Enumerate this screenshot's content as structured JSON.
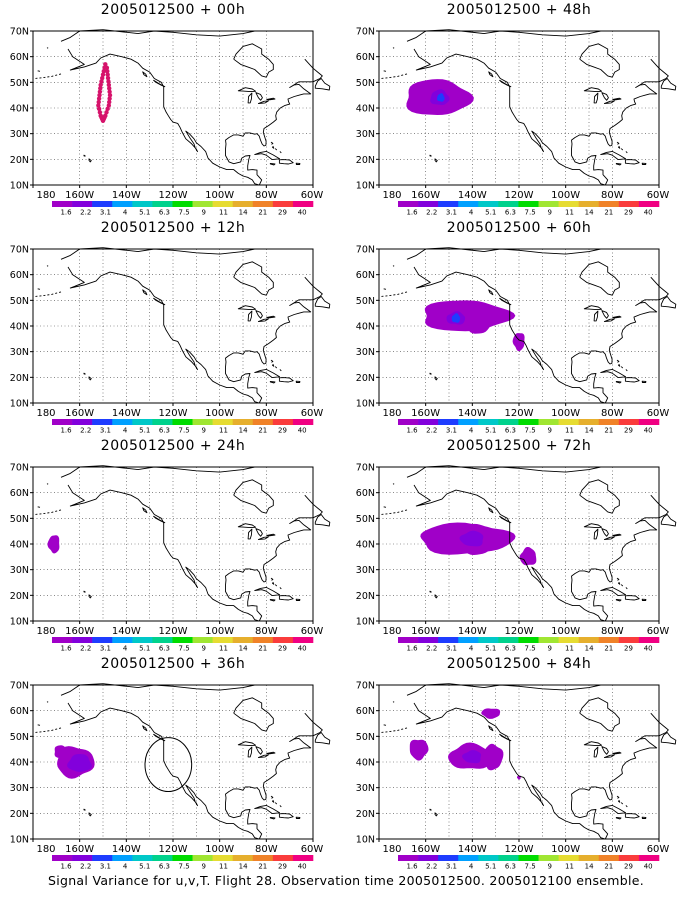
{
  "page": {
    "caption": "Signal Variance for u,v,T. Flight 28. Observation time 2005012500. 2005012100 ensemble."
  },
  "map": {
    "lat_labels": [
      "70N",
      "60N",
      "50N",
      "40N",
      "30N",
      "20N",
      "10N"
    ],
    "lon_labels": [
      "180",
      "160W",
      "140W",
      "120W",
      "100W",
      "80W",
      "60W"
    ],
    "lat_range": [
      10,
      70
    ],
    "lon_range": [
      -180,
      -60
    ],
    "grid": "dotted",
    "land_color": "#ffffff",
    "coast_color": "#000000"
  },
  "colorbar": {
    "labels": [
      "1.6",
      "2.2",
      "3.1",
      "4",
      "5.1",
      "6.3",
      "7.5",
      "9",
      "11",
      "14",
      "21",
      "29",
      "40"
    ],
    "colors": [
      "#a000c8",
      "#8200dc",
      "#1e3cff",
      "#00a0ff",
      "#00c8c8",
      "#00d28c",
      "#00dc00",
      "#a0e632",
      "#e6dc32",
      "#e6af2d",
      "#f08228",
      "#fa3c3c",
      "#f00082"
    ]
  },
  "panels": [
    {
      "title": "2005012500 + 00h",
      "blobs": [],
      "flight_track": [
        [
          -149,
          57
        ],
        [
          -150,
          53
        ],
        [
          -151,
          49
        ],
        [
          -151.5,
          45
        ],
        [
          -152,
          41
        ],
        [
          -151,
          37
        ],
        [
          -150,
          35
        ],
        [
          -149,
          37
        ],
        [
          -147.5,
          41
        ],
        [
          -147,
          45
        ],
        [
          -147.5,
          49
        ],
        [
          -148,
          53
        ],
        [
          -148.5,
          57
        ]
      ],
      "circle": null
    },
    {
      "title": "2005012500 + 12h",
      "blobs": [],
      "flight_track": [],
      "circle": null
    },
    {
      "title": "2005012500 + 24h",
      "blobs": [
        {
          "cx": -171,
          "cy": 40,
          "rx": 2.5,
          "ry": 3.5,
          "level": 0
        }
      ],
      "flight_track": [],
      "circle": null
    },
    {
      "title": "2005012500 + 36h",
      "blobs": [
        {
          "cx": -162,
          "cy": 40,
          "rx": 8,
          "ry": 6,
          "level": 0
        },
        {
          "cx": -160,
          "cy": 39.5,
          "rx": 5,
          "ry": 3.5,
          "level": 1
        },
        {
          "cx": -168,
          "cy": 44,
          "rx": 3,
          "ry": 2.5,
          "level": 0
        }
      ],
      "flight_track": [],
      "circle": {
        "lon": -122,
        "lat": 39,
        "r_deg": 10
      }
    },
    {
      "title": "2005012500 + 48h",
      "blobs": [
        {
          "cx": -155,
          "cy": 44,
          "rx": 14,
          "ry": 7,
          "level": 0
        },
        {
          "cx": -154,
          "cy": 44,
          "rx": 4,
          "ry": 3,
          "level": 1
        },
        {
          "cx": -153.5,
          "cy": 44,
          "rx": 1.6,
          "ry": 1.6,
          "level": 2
        }
      ],
      "flight_track": [],
      "circle": null
    },
    {
      "title": "2005012500 + 60h",
      "blobs": [
        {
          "cx": -143,
          "cy": 44,
          "rx": 19,
          "ry": 6,
          "level": 0
        },
        {
          "cx": -137,
          "cy": 43,
          "rx": 6,
          "ry": 6,
          "level": 0
        },
        {
          "cx": -147,
          "cy": 43,
          "rx": 4,
          "ry": 2.5,
          "level": 1
        },
        {
          "cx": -147,
          "cy": 43,
          "rx": 1.8,
          "ry": 1.8,
          "level": 2
        },
        {
          "cx": -120,
          "cy": 34,
          "rx": 2.5,
          "ry": 3.5,
          "level": 0
        }
      ],
      "flight_track": [],
      "circle": null
    },
    {
      "title": "2005012500 + 72h",
      "blobs": [
        {
          "cx": -143,
          "cy": 42,
          "rx": 20,
          "ry": 6,
          "level": 0
        },
        {
          "cx": -138,
          "cy": 42,
          "rx": 8,
          "ry": 6,
          "level": 0
        },
        {
          "cx": -140,
          "cy": 42,
          "rx": 5,
          "ry": 3,
          "level": 1
        },
        {
          "cx": -116,
          "cy": 35,
          "rx": 3.5,
          "ry": 3.5,
          "level": 0
        }
      ],
      "flight_track": [],
      "circle": null
    },
    {
      "title": "2005012500 + 84h",
      "blobs": [
        {
          "cx": -163,
          "cy": 45,
          "rx": 4,
          "ry": 4,
          "level": 0
        },
        {
          "cx": -141,
          "cy": 42,
          "rx": 9,
          "ry": 5,
          "level": 0
        },
        {
          "cx": -131,
          "cy": 42,
          "rx": 4,
          "ry": 5,
          "level": 0
        },
        {
          "cx": -140,
          "cy": 42,
          "rx": 4,
          "ry": 2.5,
          "level": 1
        },
        {
          "cx": -132,
          "cy": 59,
          "rx": 4,
          "ry": 2,
          "level": 0
        },
        {
          "cx": -120,
          "cy": 34,
          "rx": 0.8,
          "ry": 0.8,
          "level": 0
        }
      ],
      "flight_track": [],
      "circle": null
    }
  ]
}
